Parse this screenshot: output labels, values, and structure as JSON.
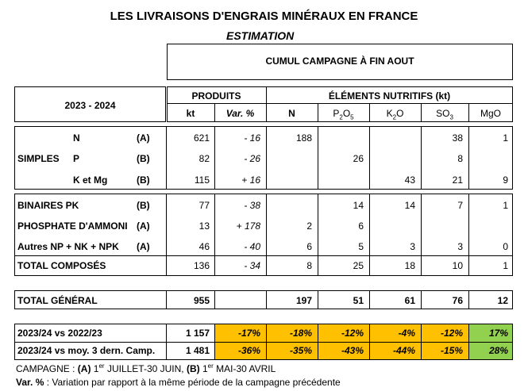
{
  "title": "LES LIVRAISONS D'ENGRAIS MINÉRAUX EN FRANCE",
  "subtitle": "ESTIMATION",
  "period_label": "CUMUL CAMPAGNE À FIN AOUT",
  "year_label": "2023 - 2024",
  "headers": {
    "produits": "PRODUITS",
    "elements": "ÉLÉMENTS NUTRITIFS (kt)",
    "kt": "kt",
    "var": "Var. %",
    "n": "N",
    "p2o5_main": "P",
    "p2o5_sub1": "2",
    "p2o5_mid": "O",
    "p2o5_sub2": "5",
    "k2o_main": "K",
    "k2o_sub": "2",
    "k2o_end": "O",
    "so3_main": "SO",
    "so3_sub": "3",
    "mgo": "MgO"
  },
  "simples": {
    "group_label": "SIMPLES",
    "rows": [
      {
        "name": "N",
        "camp": "(A)",
        "kt": "621",
        "var": "- 16",
        "n": "188",
        "p": "",
        "k": "",
        "s": "38",
        "mg": "1"
      },
      {
        "name": "P",
        "camp": "(B)",
        "kt": "82",
        "var": "- 26",
        "n": "",
        "p": "26",
        "k": "",
        "s": "8",
        "mg": ""
      },
      {
        "name": "K et Mg",
        "camp": "(B)",
        "kt": "115",
        "var": "+ 16",
        "n": "",
        "p": "",
        "k": "43",
        "s": "21",
        "mg": "9"
      }
    ]
  },
  "composes": {
    "rows": [
      {
        "name": "BINAIRES PK",
        "camp": "(B)",
        "kt": "77",
        "var": "- 38",
        "n": "",
        "p": "14",
        "k": "14",
        "s": "7",
        "mg": "1"
      },
      {
        "name": "PHOSPHATE D'AMMONI",
        "camp": "(A)",
        "kt": "13",
        "var": "+ 178",
        "n": "2",
        "p": "6",
        "k": "",
        "s": "",
        "mg": ""
      },
      {
        "name": "Autres NP + NK + NPK",
        "camp": "(A)",
        "kt": "46",
        "var": "- 40",
        "n": "6",
        "p": "5",
        "k": "3",
        "s": "3",
        "mg": "0"
      }
    ],
    "total": {
      "name": "TOTAL COMPOSÉS",
      "kt": "136",
      "var": "- 34",
      "n": "8",
      "p": "25",
      "k": "18",
      "s": "10",
      "mg": "1"
    }
  },
  "total_general": {
    "name": "TOTAL GÉNÉRAL",
    "kt": "955",
    "n": "197",
    "p": "51",
    "k": "61",
    "s": "76",
    "mg": "12"
  },
  "comparisons": [
    {
      "name": "2023/24 vs 2022/23",
      "kt": "1 157",
      "var": "-17%",
      "n": "-18%",
      "p": "-12%",
      "k": "-4%",
      "s": "-12%",
      "mg": "17%"
    },
    {
      "name": "2023/24 vs moy. 3 dern. Camp.",
      "kt": "1 481",
      "var": "-36%",
      "n": "-35%",
      "p": "-43%",
      "k": "-44%",
      "s": "-15%",
      "mg": "28%"
    }
  ],
  "colors": {
    "decline": "#FFC000",
    "increase": "#92D050"
  },
  "footnote1": {
    "prefix": "CAMPAGNE : ",
    "a_label": "(A)",
    "a_num": " 1",
    "a_sup": "er",
    "a_text": " JUILLET-30 JUIN, ",
    "b_label": "(B)",
    "b_num": " 1",
    "b_sup": "er",
    "b_text": " MAI-30 AVRIL"
  },
  "footnote2": {
    "label": "Var. %",
    "text": " : Variation par rapport à la même période de la campagne précédente"
  }
}
